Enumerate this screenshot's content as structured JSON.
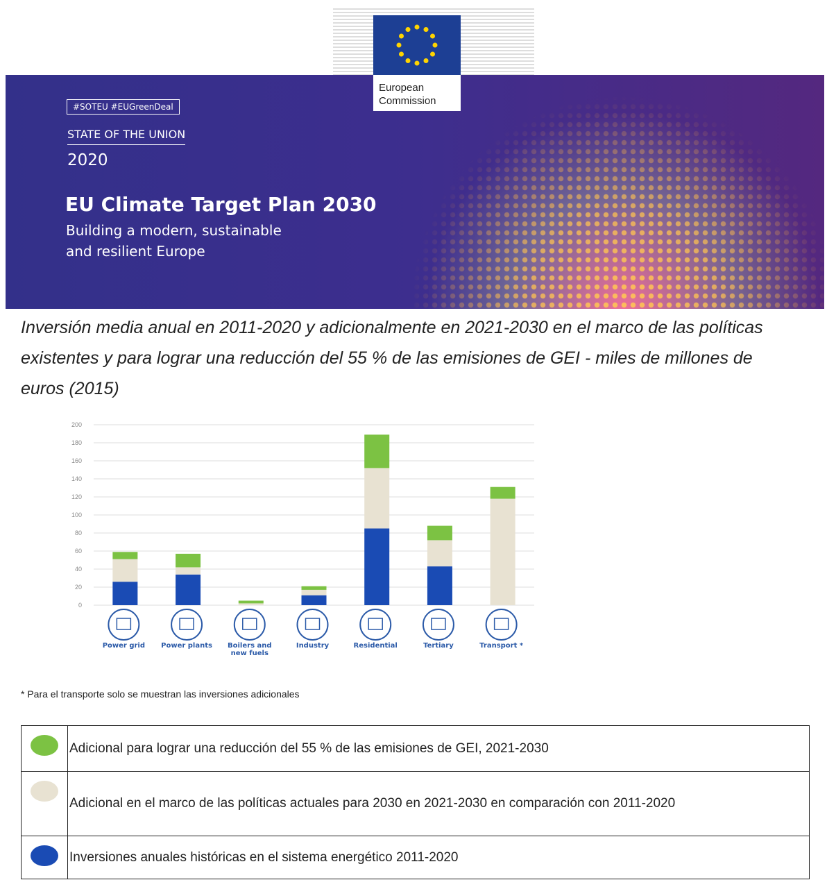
{
  "header": {
    "logo_text": "European Commission",
    "hashtags": "#SOTEU  #EUGreenDeal",
    "kicker": "STATE OF THE UNION",
    "year": "2020",
    "title": "EU Climate Target Plan 2030",
    "subtitle_line1": "Building a modern, sustainable",
    "subtitle_line2": "and resilient Europe"
  },
  "chart_data": {
    "type": "stacked_bar",
    "title": "Inversión media anual en 2011-2020 y adicionalmente en 2021-2030 en el marco de las políticas existentes y para lograr una reducción del 55 % de las emisiones de GEI - miles de millones de euros (2015)",
    "categories": [
      "Power grid",
      "Power plants",
      "Boilers and new fuels",
      "Industry",
      "Residential",
      "Tertiary",
      "Transport *"
    ],
    "series": [
      {
        "name": "Adicional para lograr una reducción del 55 % de las emisiones de GEI, 2021-2030",
        "color": "#7cc243",
        "values": [
          8,
          15,
          3,
          4,
          37,
          16,
          13
        ]
      },
      {
        "name": "Adicional en el marco de las políticas actuales para 2030 en 2021-2030 en comparación con 2011-2020",
        "color": "#e8e2d2",
        "values": [
          25,
          8,
          2,
          6,
          67,
          29,
          118
        ]
      },
      {
        "name": "Inversiones anuales históricas en el sistema energético 2011-2020",
        "color": "#1a4bb4",
        "values": [
          26,
          34,
          0,
          11,
          85,
          43,
          0
        ]
      }
    ],
    "ylim": [
      0,
      200
    ],
    "yticks": [
      0,
      20,
      40,
      60,
      80,
      100,
      120,
      140,
      160,
      180,
      200
    ],
    "grid": true,
    "footnote": "* Para el transporte solo se muestran las inversiones adicionales"
  }
}
